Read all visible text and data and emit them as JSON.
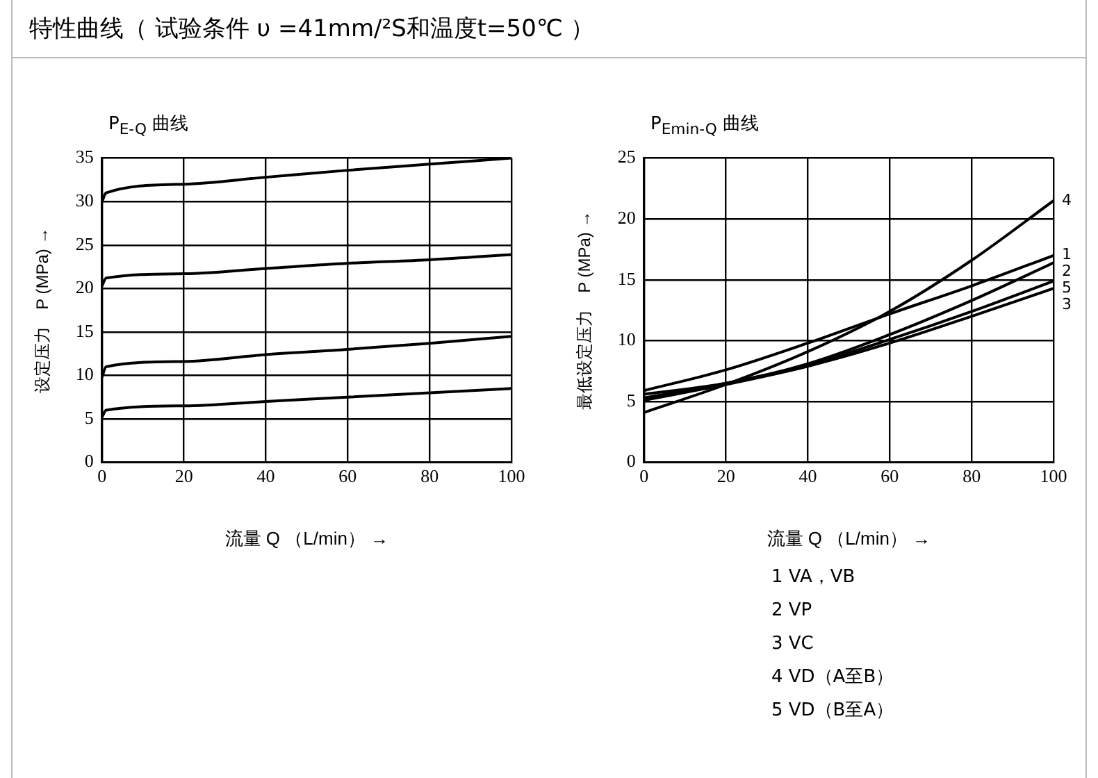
{
  "chart_data": [
    {
      "type": "other",
      "title": "特性曲线（ 试验条件 υ =41mm/²S和温度t=50℃ ）"
    },
    {
      "type": "line",
      "title": "P$_{E-Q}$ 曲线",
      "xlabel": "流量 Q （L/min） →",
      "ylabel": "设定压力　P (MPa) →",
      "xlim": [
        0,
        100
      ],
      "xticks": [
        0,
        20,
        40,
        60,
        80,
        100
      ],
      "ylim": [
        0,
        35
      ],
      "yticks": [
        0,
        5,
        10,
        15,
        20,
        25,
        30,
        35
      ],
      "grid": true,
      "legend": false,
      "marker": "none",
      "x": [
        0,
        1,
        20,
        40,
        60,
        80,
        100
      ],
      "series": [
        {
          "color": "#000000",
          "values": [
            30,
            31,
            32,
            32.8,
            33.6,
            34.3,
            35
          ]
        },
        {
          "color": "#000000",
          "values": [
            20.3,
            21.2,
            21.7,
            22.3,
            22.9,
            23.3,
            23.9
          ]
        },
        {
          "color": "#000000",
          "values": [
            9.8,
            11,
            11.6,
            12.4,
            13,
            13.7,
            14.5
          ]
        },
        {
          "color": "#000000",
          "values": [
            5.2,
            6,
            6.5,
            7,
            7.5,
            8,
            8.5
          ]
        }
      ]
    },
    {
      "type": "line",
      "title": "P$_{Emin-Q}$ 曲线",
      "xlabel": "流量 Q （L/min） →",
      "ylabel": "最低设定压力　P (MPa) →",
      "xlim": [
        0,
        100
      ],
      "xticks": [
        0,
        20,
        40,
        60,
        80,
        100
      ],
      "ylim": [
        0,
        25
      ],
      "yticks": [
        0,
        5,
        10,
        15,
        20,
        25
      ],
      "grid": true,
      "legend": false,
      "marker": "none",
      "x": [
        0,
        20,
        40,
        60,
        80,
        100
      ],
      "series": [
        {
          "name": "1",
          "color": "#000000",
          "values": [
            5.9,
            7.6,
            9.8,
            12.2,
            14.5,
            17
          ]
        },
        {
          "name": "2",
          "color": "#000000",
          "values": [
            5.6,
            6.5,
            8.1,
            10.5,
            13.3,
            16.4
          ]
        },
        {
          "name": "3",
          "color": "#000000",
          "values": [
            5.1,
            6.4,
            7.9,
            9.8,
            12,
            14.3
          ]
        },
        {
          "name": "4",
          "color": "#000000",
          "values": [
            4.1,
            6.4,
            9.1,
            12.4,
            16.6,
            21.5
          ]
        },
        {
          "name": "5",
          "color": "#000000",
          "values": [
            5.3,
            6.5,
            8,
            10.1,
            12.4,
            14.9
          ]
        }
      ],
      "annotations": [
        "1 VA，VB",
        "2 VP",
        "3 VC",
        "4 VD（A至B）",
        "5 VD（B至A）"
      ]
    }
  ]
}
